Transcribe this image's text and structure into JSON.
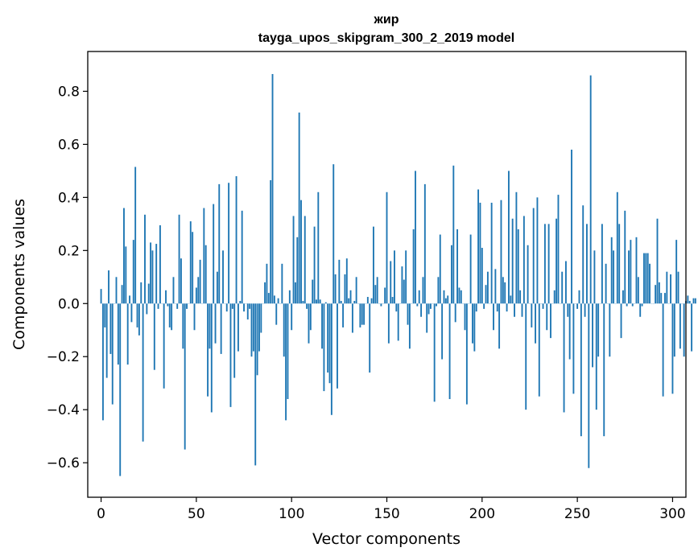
{
  "chart_data": {
    "type": "bar",
    "title": "жир",
    "subtitle": "tayga_upos_skipgram_300_2_2019 model",
    "xlabel": "Vector components",
    "ylabel": "Components values",
    "xlim": [
      -7,
      307
    ],
    "ylim": [
      -0.73,
      0.95
    ],
    "xticks": [
      0,
      50,
      100,
      150,
      200,
      250,
      300
    ],
    "xtick_labels": [
      "0",
      "50",
      "100",
      "150",
      "200",
      "250",
      "300"
    ],
    "yticks": [
      -0.6,
      -0.4,
      -0.2,
      0.0,
      0.2,
      0.4,
      0.6,
      0.8
    ],
    "ytick_labels": [
      "−0.6",
      "−0.4",
      "−0.2",
      "0.0",
      "0.2",
      "0.4",
      "0.6",
      "0.8"
    ],
    "bar_color": "#1f77b4",
    "grid": false,
    "values": [
      0.055,
      -0.44,
      -0.09,
      -0.28,
      0.125,
      -0.19,
      -0.38,
      0.0,
      0.1,
      -0.23,
      -0.65,
      0.07,
      0.36,
      0.215,
      -0.23,
      0.03,
      -0.07,
      0.24,
      0.515,
      -0.09,
      -0.12,
      0.08,
      -0.52,
      0.335,
      -0.04,
      0.075,
      0.23,
      0.2,
      -0.25,
      0.225,
      -0.02,
      0.295,
      0.0,
      -0.32,
      0.05,
      -0.01,
      -0.09,
      -0.1,
      0.1,
      0.0,
      -0.02,
      0.335,
      0.17,
      -0.17,
      -0.55,
      -0.02,
      0.0,
      0.31,
      0.27,
      -0.1,
      0.06,
      0.1,
      0.165,
      0.0,
      0.36,
      0.22,
      -0.35,
      -0.17,
      -0.41,
      0.375,
      -0.15,
      0.12,
      0.45,
      -0.19,
      0.2,
      0.0,
      -0.03,
      0.455,
      -0.39,
      -0.02,
      -0.28,
      0.48,
      -0.18,
      0.01,
      0.35,
      -0.03,
      0.0,
      -0.06,
      -0.02,
      -0.2,
      -0.18,
      -0.61,
      -0.27,
      -0.18,
      -0.11,
      0.0,
      0.08,
      0.15,
      0.04,
      0.465,
      0.865,
      0.03,
      -0.08,
      0.02,
      0.0,
      0.15,
      -0.2,
      -0.44,
      -0.36,
      0.05,
      -0.1,
      0.33,
      0.08,
      0.25,
      0.72,
      0.39,
      0.01,
      0.33,
      -0.02,
      -0.15,
      -0.1,
      0.09,
      0.29,
      0.015,
      0.42,
      0.015,
      -0.17,
      -0.33,
      0.005,
      -0.26,
      -0.3,
      -0.42,
      0.525,
      0.11,
      -0.32,
      0.165,
      0.01,
      -0.09,
      0.11,
      0.17,
      0.02,
      0.05,
      -0.11,
      0.01,
      0.1,
      0.0,
      -0.09,
      -0.08,
      -0.08,
      0.0,
      0.025,
      -0.26,
      0.02,
      0.29,
      0.07,
      0.1,
      0.0,
      -0.01,
      0.0,
      0.06,
      0.42,
      -0.15,
      0.16,
      0.025,
      0.2,
      -0.03,
      -0.14,
      0.0,
      0.14,
      0.09,
      0.2,
      -0.08,
      -0.17,
      0.0,
      0.28,
      0.5,
      -0.01,
      0.05,
      -0.05,
      0.1,
      0.45,
      -0.11,
      -0.04,
      -0.02,
      0.0,
      -0.37,
      -0.01,
      0.1,
      0.26,
      -0.21,
      0.05,
      0.02,
      0.03,
      -0.36,
      0.22,
      0.52,
      -0.07,
      0.28,
      0.06,
      0.05,
      0.0,
      -0.1,
      -0.38,
      0.0,
      0.26,
      -0.15,
      -0.18,
      -0.03,
      0.43,
      0.38,
      0.21,
      -0.02,
      0.07,
      0.12,
      0.0,
      0.38,
      -0.1,
      0.13,
      -0.03,
      -0.17,
      0.39,
      0.1,
      0.08,
      -0.03,
      0.5,
      0.03,
      0.32,
      -0.05,
      0.42,
      0.28,
      0.05,
      -0.05,
      0.33,
      -0.4,
      0.22,
      0.0,
      -0.09,
      0.36,
      -0.15,
      0.4,
      -0.35,
      0.0,
      -0.02,
      0.3,
      -0.1,
      0.3,
      -0.13,
      0.0,
      0.05,
      0.32,
      0.41,
      0.0,
      0.12,
      -0.41,
      0.16,
      -0.05,
      -0.21,
      0.58,
      -0.34,
      0.0,
      -0.02,
      0.05,
      -0.5,
      0.37,
      -0.05,
      0.3,
      -0.62,
      0.86,
      -0.24,
      0.2,
      -0.4,
      -0.2,
      0.0,
      0.3,
      -0.5,
      0.15,
      0.0,
      -0.2,
      0.25,
      0.2,
      0.0,
      0.42,
      0.3,
      -0.13,
      0.05,
      0.35,
      -0.01,
      0.2,
      0.24,
      -0.01,
      0.0,
      0.25,
      0.1,
      -0.05,
      -0.01,
      0.19,
      0.19,
      0.19,
      0.15,
      0.0,
      0.0,
      0.07,
      0.32,
      0.08,
      0.04,
      -0.35,
      0.04,
      0.12,
      0.0,
      0.11,
      -0.34,
      -0.2,
      0.24,
      0.12,
      -0.17,
      0.0,
      -0.2,
      0.01,
      0.03,
      0.01,
      -0.18,
      0.02,
      0.02
    ]
  }
}
